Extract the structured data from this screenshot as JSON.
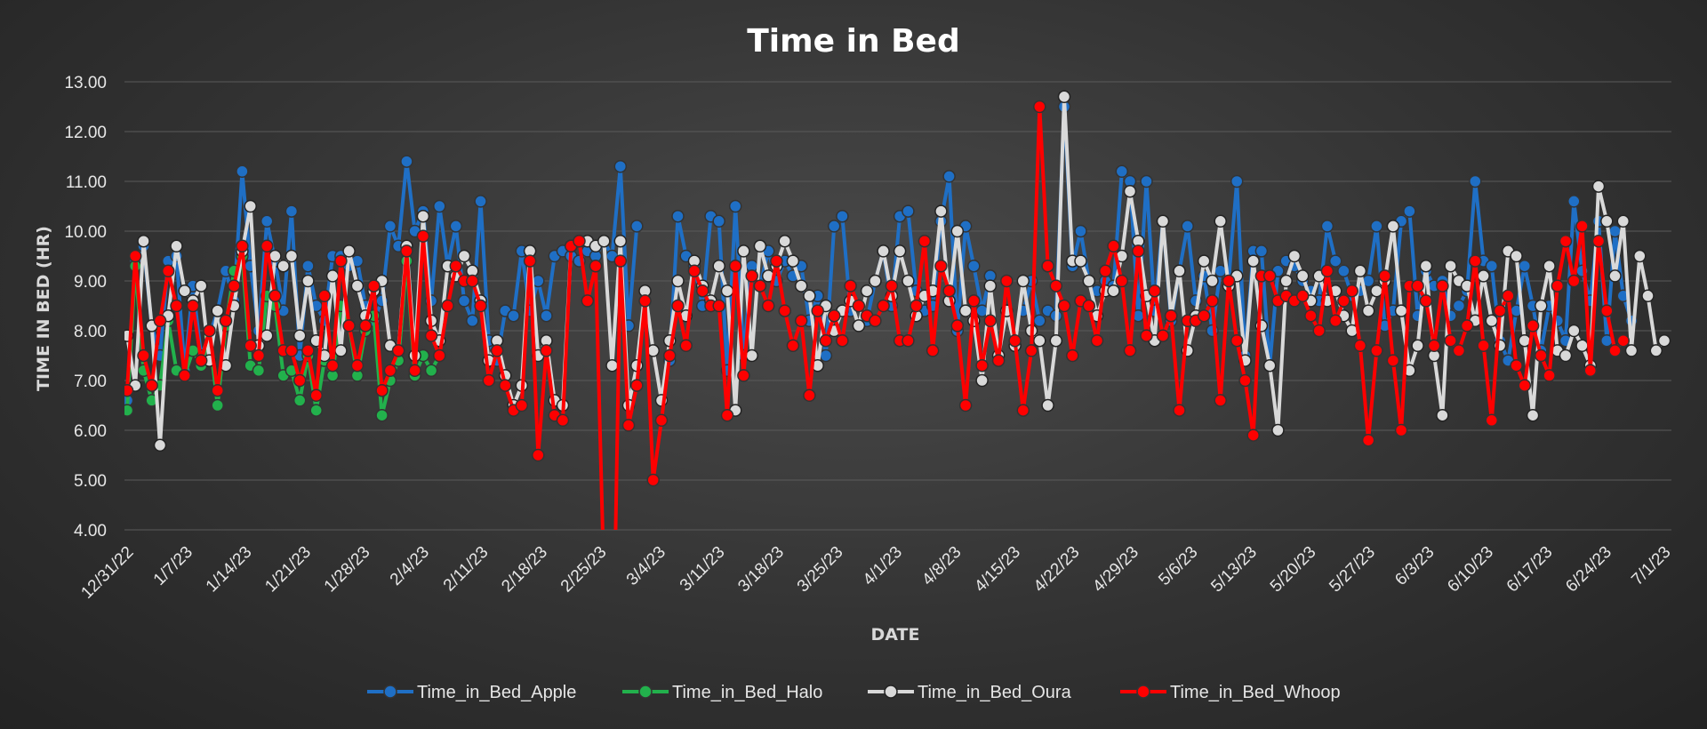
{
  "chart_data": {
    "type": "line",
    "title": "Time in Bed",
    "xlabel": "DATE",
    "ylabel": "TIME IN BED (HR)",
    "ylim": [
      4.0,
      13.0
    ],
    "y_ticks": [
      "4.00",
      "5.00",
      "6.00",
      "7.00",
      "8.00",
      "9.00",
      "10.00",
      "11.00",
      "12.00",
      "13.00"
    ],
    "x_start": "12/31/22",
    "x_end": "7/1/23",
    "x_ticks": [
      "12/31/22",
      "1/7/23",
      "1/14/23",
      "1/21/23",
      "1/28/23",
      "2/4/23",
      "2/11/23",
      "2/18/23",
      "2/25/23",
      "3/4/23",
      "3/11/23",
      "3/18/23",
      "3/25/23",
      "4/1/23",
      "4/8/23",
      "4/15/23",
      "4/22/23",
      "4/29/23",
      "5/6/23",
      "5/13/23",
      "5/20/23",
      "5/27/23",
      "6/3/23",
      "6/10/23",
      "6/17/23",
      "6/24/23",
      "7/1/23"
    ],
    "grid": true,
    "legend_position": "bottom",
    "series": [
      {
        "name": "Time_in_Bed_Apple",
        "color": "#1f6fc5",
        "values": [
          6.6,
          9.4,
          9.7,
          8.1,
          7.5,
          9.4,
          9.5,
          7.2,
          8.9,
          7.5,
          7.9,
          8.4,
          9.2,
          8.6,
          11.2,
          9.3,
          8.0,
          10.2,
          9.4,
          8.4,
          10.4,
          7.5,
          9.3,
          8.5,
          8.2,
          9.5,
          9.5,
          9.3,
          9.4,
          8.5,
          8.2,
          8.6,
          10.1,
          9.7,
          11.4,
          10.0,
          10.4,
          8.6,
          10.5,
          9.3,
          10.1,
          8.6,
          8.2,
          10.6,
          7.8,
          7.4,
          8.4,
          8.3,
          9.6,
          8.4,
          9.0,
          8.3,
          9.5,
          9.6,
          9.5,
          9.4,
          9.6,
          9.5,
          9.8,
          9.5,
          11.3,
          8.1,
          10.1,
          10.1,
          12.3,
          7.0,
          7.4,
          10.3,
          9.5,
          9.3,
          8.5,
          10.3,
          10.2,
          7.2,
          10.5,
          7.5,
          9.3,
          8.9,
          9.6,
          9.0,
          9.4,
          9.1,
          9.3,
          8.2,
          8.7,
          7.5,
          10.1,
          10.3,
          8.4,
          8.5,
          8.2,
          9.0,
          9.6,
          8.5,
          10.3,
          10.4,
          8.8,
          8.4,
          8.5,
          10.2,
          11.1,
          8.0,
          10.1,
          9.3,
          8.4,
          9.1,
          9.1,
          8.6,
          7.9,
          8.4,
          9.0,
          8.2,
          8.4,
          8.3,
          12.5,
          9.3,
          10.0,
          9.0,
          8.8,
          9.0,
          8.9,
          11.2,
          11.0,
          8.3,
          11.0,
          8.4,
          10.2,
          8.2,
          9.2,
          10.1,
          8.6,
          9.1,
          8.0,
          9.2,
          9.0,
          11.0,
          7.5,
          9.6,
          9.6,
          7.3,
          9.2,
          9.4,
          9.3,
          9.0,
          8.8,
          8.6,
          10.1,
          9.4,
          9.2,
          8.7,
          8.8,
          9.0,
          10.1,
          8.1,
          8.4,
          10.2,
          10.4,
          8.3,
          9.2,
          8.9,
          9.0,
          8.3,
          8.5,
          8.8,
          11.0,
          9.4,
          9.3,
          7.8,
          7.4,
          8.4,
          9.3,
          8.5,
          7.6,
          8.5,
          8.2,
          7.8,
          10.6,
          9.2,
          8.6,
          10.2,
          7.8,
          10.0,
          8.7,
          8.2
        ],
        "gaps": [
          [
            62,
            66
          ],
          [
            105,
            109
          ]
        ]
      },
      {
        "name": "Time_in_Bed_Halo",
        "color": "#22b14c",
        "values": [
          6.4,
          9.3,
          7.2,
          6.6,
          6.9,
          8.2,
          7.2,
          7.1,
          7.6,
          7.3,
          7.9,
          6.5,
          8.1,
          9.2,
          9.5,
          7.3,
          7.2,
          8.7,
          8.5,
          7.1,
          7.2,
          6.6,
          7.5,
          6.4,
          7.4,
          7.1,
          8.5,
          8.1,
          7.1,
          8.0,
          8.3,
          6.3,
          7.0,
          7.4,
          9.4,
          7.1,
          7.5,
          7.2,
          7.5
        ],
        "x_end_index": 38
      },
      {
        "name": "Time_in_Bed_Oura",
        "color": "#d9d9d9",
        "values": [
          7.9,
          6.9,
          9.8,
          8.1,
          5.7,
          8.3,
          9.7,
          8.8,
          8.6,
          8.9,
          7.4,
          8.4,
          7.3,
          8.5,
          9.6,
          10.5,
          7.7,
          7.9,
          9.5,
          9.3,
          9.5,
          7.9,
          9.0,
          7.8,
          7.5,
          9.1,
          7.6,
          9.6,
          8.9,
          8.3,
          8.8,
          9.0,
          7.7,
          7.6,
          9.7,
          7.5,
          10.3,
          8.2,
          7.8,
          9.3,
          9.1,
          9.5,
          9.2,
          8.6,
          7.4,
          7.8,
          7.1,
          6.5,
          6.9,
          9.6,
          7.5,
          7.8,
          6.6,
          6.5,
          9.7,
          9.8,
          9.8,
          9.7,
          9.8,
          7.3,
          9.8,
          6.5,
          7.3,
          8.8,
          7.6,
          6.6,
          7.8,
          9.0,
          8.3,
          9.4,
          8.9,
          8.6,
          9.3,
          8.8,
          6.4,
          9.6,
          7.5,
          9.7,
          9.1,
          9.3,
          9.8,
          9.4,
          8.9,
          8.7,
          7.3,
          8.5,
          8.0,
          8.4,
          8.6,
          8.1,
          8.8,
          9.0,
          9.6,
          8.7,
          9.6,
          9.0,
          8.3,
          8.7,
          8.8,
          10.4,
          8.6,
          10.0,
          8.4,
          8.2,
          7.0,
          8.9,
          7.5,
          8.4,
          7.7,
          9.0,
          8.0,
          7.8,
          6.5,
          7.8,
          12.7,
          9.4,
          9.4,
          9.0,
          8.3,
          8.8,
          8.8,
          9.5,
          10.8,
          9.8,
          8.7,
          7.8,
          10.2,
          8.3,
          9.2,
          7.6,
          8.3,
          9.4,
          9.0,
          10.2,
          8.9,
          9.1,
          7.4,
          9.4,
          8.1,
          7.3,
          6.0,
          9.0,
          9.5,
          9.1,
          8.6,
          9.1,
          8.6,
          8.8,
          8.3,
          8.0,
          9.2,
          8.4,
          8.8,
          9.0,
          10.1,
          8.4,
          7.2,
          7.7,
          9.3,
          7.5,
          6.3,
          9.3,
          9.0,
          8.9,
          8.2,
          9.1,
          8.2,
          7.7,
          9.6,
          9.5,
          7.8,
          6.3,
          8.5,
          9.3,
          7.6,
          7.5,
          8.0,
          7.7,
          7.3,
          10.9,
          10.2,
          9.1,
          10.2,
          7.6,
          9.5,
          8.7,
          7.6,
          7.8
        ]
      },
      {
        "name": "Time_in_Bed_Whoop",
        "color": "#ff0000",
        "values": [
          6.8,
          9.5,
          7.5,
          6.9,
          8.2,
          9.2,
          8.5,
          7.1,
          8.5,
          7.4,
          8.0,
          6.8,
          8.2,
          8.9,
          9.7,
          7.7,
          7.5,
          9.7,
          8.7,
          7.6,
          7.6,
          7.0,
          7.6,
          6.7,
          8.7,
          7.3,
          9.4,
          8.1,
          7.3,
          8.1,
          8.9,
          6.8,
          7.2,
          7.6,
          9.6,
          7.2,
          9.9,
          7.9,
          7.5,
          8.5,
          9.3,
          9.0,
          9.0,
          8.5,
          7.0,
          7.6,
          6.9,
          6.4,
          6.5,
          9.4,
          5.5,
          7.6,
          6.3,
          6.2,
          9.7,
          9.8,
          8.6,
          9.3,
          3.0,
          0.0,
          9.4,
          6.1,
          6.9,
          8.6,
          5.0,
          6.2,
          7.5,
          8.5,
          7.7,
          9.2,
          8.8,
          8.5,
          8.5,
          6.3,
          9.3,
          7.1,
          9.1,
          8.9,
          8.5,
          9.4,
          8.4,
          7.7,
          8.2,
          6.7,
          8.4,
          7.8,
          8.3,
          7.8,
          8.9,
          8.5,
          8.3,
          8.2,
          8.5,
          8.9,
          7.8,
          7.8,
          8.5,
          9.8,
          7.6,
          9.3,
          8.8,
          8.1,
          6.5,
          8.6,
          7.3,
          8.2,
          7.4,
          9.0,
          7.8,
          6.4,
          7.6,
          12.5,
          9.3,
          8.9,
          8.5,
          7.5,
          8.6,
          8.5,
          7.8,
          9.2,
          9.7,
          9.0,
          7.6,
          9.6,
          7.9,
          8.8,
          7.9,
          8.3,
          6.4,
          8.2,
          8.2,
          8.3,
          8.6,
          6.6,
          9.0,
          7.8,
          7.0,
          5.9,
          9.1,
          9.1,
          8.6,
          8.7,
          8.6,
          8.7,
          8.3,
          8.0,
          9.2,
          8.2,
          8.6,
          8.8,
          7.7,
          5.8,
          7.6,
          9.1,
          7.4,
          6.0,
          8.9,
          8.9,
          8.6,
          7.7,
          8.9,
          7.8,
          7.6,
          8.1,
          9.4,
          7.7,
          6.2,
          8.4,
          8.7,
          7.3,
          6.9,
          8.1,
          7.5,
          7.1,
          8.9,
          9.8,
          9.0,
          10.1,
          7.2,
          9.8,
          8.4,
          7.6,
          7.8
        ]
      }
    ]
  }
}
